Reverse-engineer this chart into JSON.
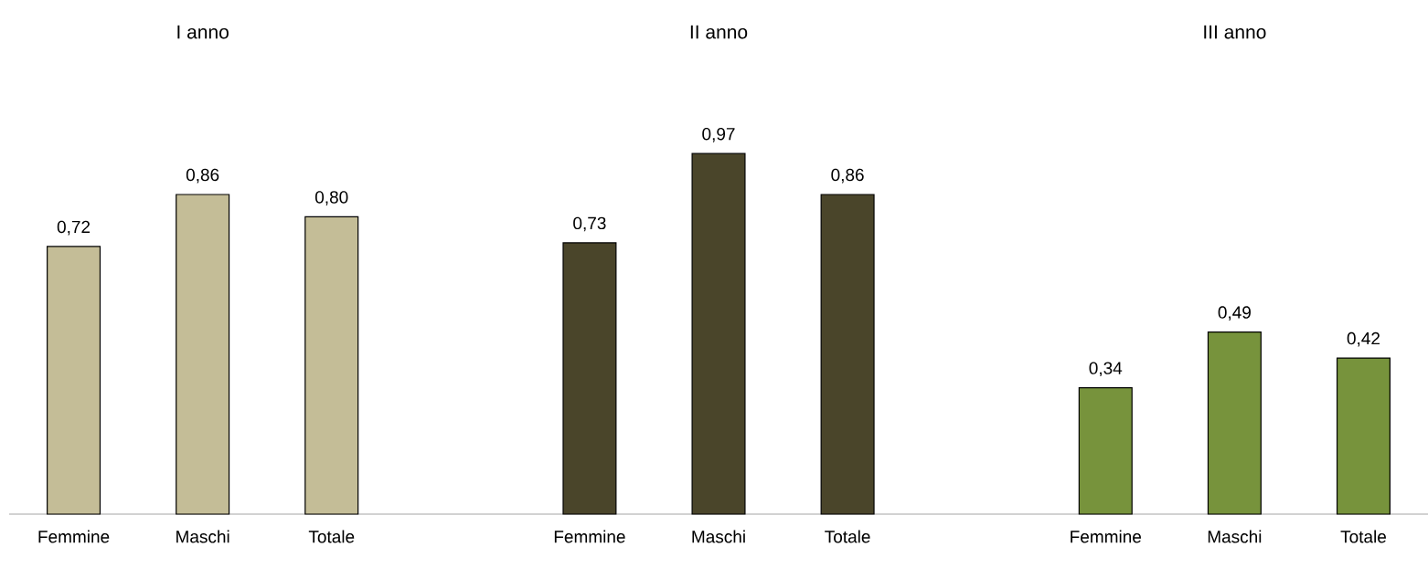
{
  "chart_data": {
    "type": "bar",
    "categories": [
      "Femmine",
      "Maschi",
      "Totale",
      null,
      "Femmine",
      "Maschi",
      "Totale",
      null,
      "Femmine",
      "Maschi",
      "Totale"
    ],
    "series": [
      {
        "color": "#c4bd97",
        "values": [
          0.72,
          0.86,
          0.8,
          null,
          null,
          null,
          null,
          null,
          null,
          null,
          null
        ],
        "value_labels": [
          "0,72",
          "0,86",
          "0,80",
          null,
          null,
          null,
          null,
          null,
          null,
          null,
          null
        ]
      },
      {
        "color": "#4a452a",
        "values": [
          null,
          null,
          null,
          null,
          0.73,
          0.97,
          0.86,
          null,
          null,
          null,
          null
        ],
        "value_labels": [
          null,
          null,
          null,
          null,
          "0,73",
          "0,97",
          "0,86",
          null,
          null,
          null,
          null
        ]
      },
      {
        "color": "#77933c",
        "values": [
          null,
          null,
          null,
          null,
          null,
          null,
          null,
          null,
          0.34,
          0.49,
          0.42
        ],
        "value_labels": [
          null,
          null,
          null,
          null,
          null,
          null,
          null,
          null,
          "0,34",
          "0,49",
          "0,42"
        ]
      }
    ],
    "annotations": [
      "I anno",
      "II anno",
      "III anno"
    ],
    "tick_labels": "x"
  }
}
